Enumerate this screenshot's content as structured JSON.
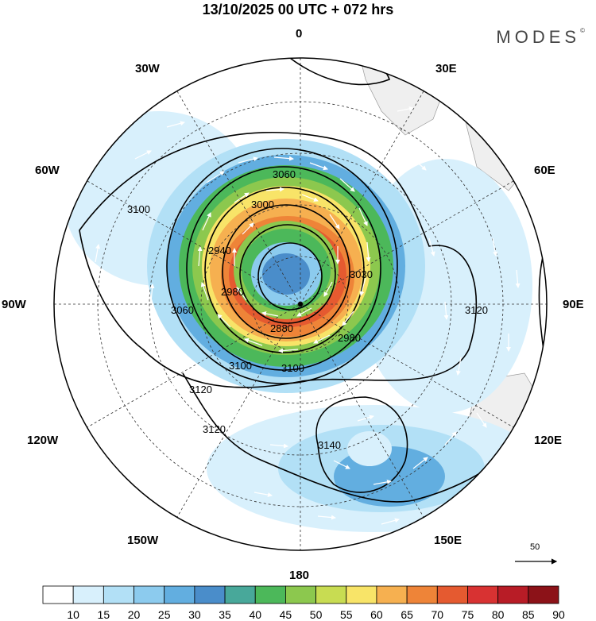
{
  "title": "13/10/2025  00 UTC  + 072 hrs",
  "brand": "MODES",
  "brand_mark": "©",
  "longitude_labels": {
    "lon0": "0",
    "lon30e": "30E",
    "lon60e": "60E",
    "lon90e": "90E",
    "lon120e": "120E",
    "lon150e": "150E",
    "lon180": "180",
    "lon150w": "150W",
    "lon120w": "120W",
    "lon90w": "90W",
    "lon60w": "60W",
    "lon30w": "30W"
  },
  "contour_labels": [
    "3060",
    "3000",
    "2940",
    "2980",
    "2880",
    "3030",
    "2980",
    "3060",
    "3100",
    "3100",
    "3100",
    "3120",
    "3120",
    "3120",
    "3140"
  ],
  "colorbar": {
    "levels": [
      "10",
      "15",
      "20",
      "25",
      "30",
      "35",
      "40",
      "45",
      "50",
      "55",
      "60",
      "65",
      "70",
      "75",
      "80",
      "85",
      "90"
    ],
    "colors": [
      "#ffffff",
      "#d8f0fc",
      "#b2e0f6",
      "#8ccbee",
      "#62aee0",
      "#4a8dca",
      "#48a89a",
      "#4cb85a",
      "#8cc84e",
      "#c8dc52",
      "#f8e468",
      "#f6b050",
      "#ee8438",
      "#e55a30",
      "#d83232",
      "#b81c26",
      "#8c1218"
    ]
  },
  "wind_reference": "50"
}
